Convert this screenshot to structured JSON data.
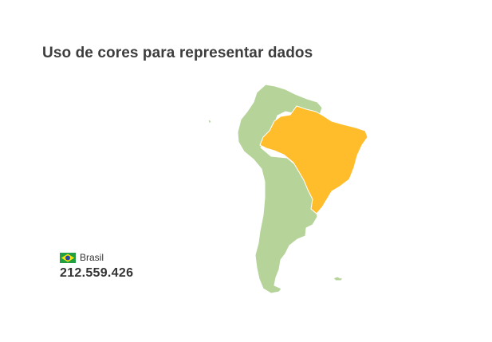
{
  "title": "Uso de cores para representar dados",
  "colors": {
    "other_countries": "#b6d49a",
    "highlighted_country": "#ffbc2b",
    "borders": "#ffffff",
    "title_text": "#3d3d3d"
  },
  "highlight": {
    "country": "Brasil",
    "flag_icon": "brazil-flag-icon",
    "value": "212.559.426"
  }
}
